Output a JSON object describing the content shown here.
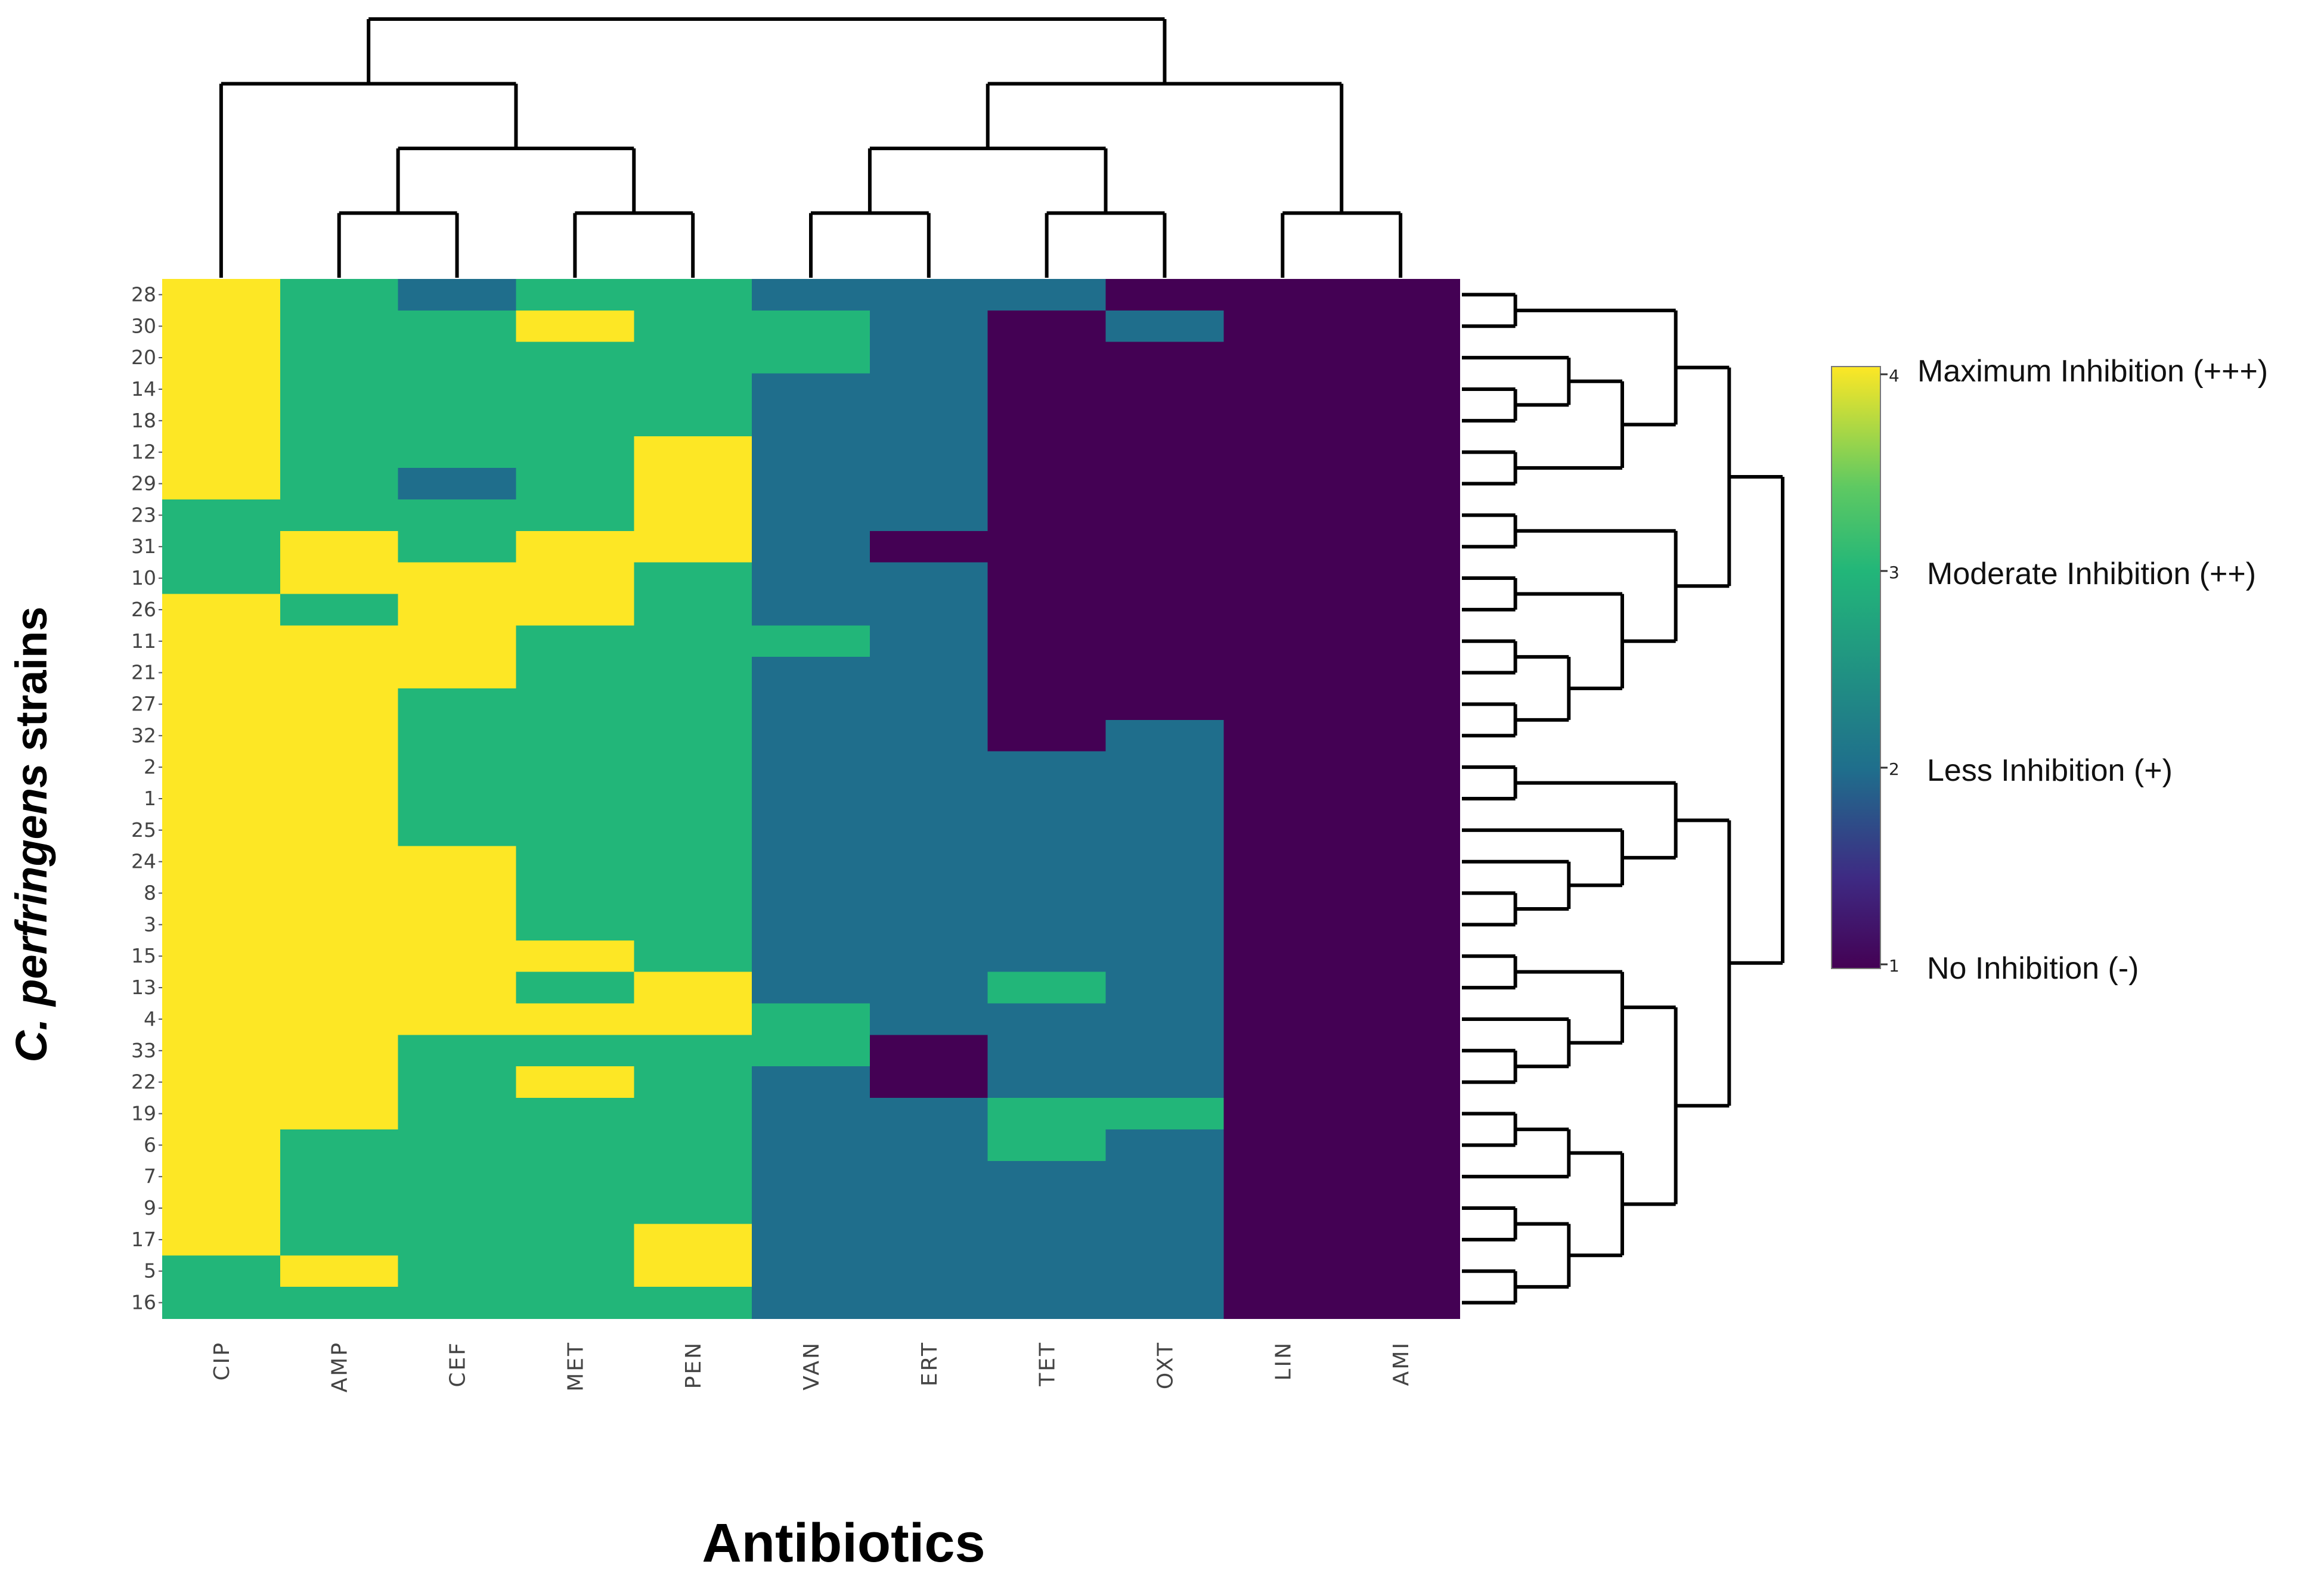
{
  "chart_data": {
    "type": "heatmap",
    "xlabel": "Antibiotics",
    "ylabel_prefix": "C. perfringens",
    "ylabel_suffix": " strains",
    "columns": [
      "CIP",
      "AMP",
      "CEF",
      "MET",
      "PEN",
      "VAN",
      "ERT",
      "TET",
      "OXT",
      "LIN",
      "AMI"
    ],
    "rows": [
      "28",
      "30",
      "20",
      "14",
      "18",
      "12",
      "29",
      "23",
      "31",
      "10",
      "26",
      "11",
      "21",
      "27",
      "32",
      "2",
      "1",
      "25",
      "24",
      "8",
      "3",
      "15",
      "13",
      "4",
      "33",
      "22",
      "19",
      "6",
      "7",
      "9",
      "17",
      "5",
      "16"
    ],
    "values": [
      [
        4,
        3,
        2,
        3,
        3,
        2,
        2,
        2,
        1,
        1,
        1
      ],
      [
        4,
        3,
        3,
        4,
        3,
        3,
        2,
        1,
        2,
        1,
        1
      ],
      [
        4,
        3,
        3,
        3,
        3,
        3,
        2,
        1,
        1,
        1,
        1
      ],
      [
        4,
        3,
        3,
        3,
        3,
        2,
        2,
        1,
        1,
        1,
        1
      ],
      [
        4,
        3,
        3,
        3,
        3,
        2,
        2,
        1,
        1,
        1,
        1
      ],
      [
        4,
        3,
        3,
        3,
        4,
        2,
        2,
        1,
        1,
        1,
        1
      ],
      [
        4,
        3,
        2,
        3,
        4,
        2,
        2,
        1,
        1,
        1,
        1
      ],
      [
        3,
        3,
        3,
        3,
        4,
        2,
        2,
        1,
        1,
        1,
        1
      ],
      [
        3,
        4,
        3,
        4,
        4,
        2,
        1,
        1,
        1,
        1,
        1
      ],
      [
        3,
        4,
        4,
        4,
        3,
        2,
        2,
        1,
        1,
        1,
        1
      ],
      [
        4,
        3,
        4,
        4,
        3,
        2,
        2,
        1,
        1,
        1,
        1
      ],
      [
        4,
        4,
        4,
        3,
        3,
        3,
        2,
        1,
        1,
        1,
        1
      ],
      [
        4,
        4,
        4,
        3,
        3,
        2,
        2,
        1,
        1,
        1,
        1
      ],
      [
        4,
        4,
        3,
        3,
        3,
        2,
        2,
        1,
        1,
        1,
        1
      ],
      [
        4,
        4,
        3,
        3,
        3,
        2,
        2,
        1,
        2,
        1,
        1
      ],
      [
        4,
        4,
        3,
        3,
        3,
        2,
        2,
        2,
        2,
        1,
        1
      ],
      [
        4,
        4,
        3,
        3,
        3,
        2,
        2,
        2,
        2,
        1,
        1
      ],
      [
        4,
        4,
        3,
        3,
        3,
        2,
        2,
        2,
        2,
        1,
        1
      ],
      [
        4,
        4,
        4,
        3,
        3,
        2,
        2,
        2,
        2,
        1,
        1
      ],
      [
        4,
        4,
        4,
        3,
        3,
        2,
        2,
        2,
        2,
        1,
        1
      ],
      [
        4,
        4,
        4,
        3,
        3,
        2,
        2,
        2,
        2,
        1,
        1
      ],
      [
        4,
        4,
        4,
        4,
        3,
        2,
        2,
        2,
        2,
        1,
        1
      ],
      [
        4,
        4,
        4,
        3,
        4,
        2,
        2,
        3,
        2,
        1,
        1
      ],
      [
        4,
        4,
        4,
        4,
        4,
        3,
        2,
        2,
        2,
        1,
        1
      ],
      [
        4,
        4,
        3,
        3,
        3,
        3,
        1,
        2,
        2,
        1,
        1
      ],
      [
        4,
        4,
        3,
        4,
        3,
        2,
        1,
        2,
        2,
        1,
        1
      ],
      [
        4,
        4,
        3,
        3,
        3,
        2,
        2,
        3,
        3,
        1,
        1
      ],
      [
        4,
        3,
        3,
        3,
        3,
        2,
        2,
        3,
        2,
        1,
        1
      ],
      [
        4,
        3,
        3,
        3,
        3,
        2,
        2,
        2,
        2,
        1,
        1
      ],
      [
        4,
        3,
        3,
        3,
        3,
        2,
        2,
        2,
        2,
        1,
        1
      ],
      [
        4,
        3,
        3,
        3,
        4,
        2,
        2,
        2,
        2,
        1,
        1
      ],
      [
        3,
        4,
        3,
        3,
        4,
        2,
        2,
        2,
        2,
        1,
        1
      ],
      [
        3,
        3,
        3,
        3,
        3,
        2,
        2,
        2,
        2,
        1,
        1
      ]
    ],
    "color_scale": {
      "colors": {
        "1": "#440154",
        "2": "#1f6e8c",
        "3": "#22b679",
        "4": "#fde725"
      },
      "range": [
        1,
        4
      ],
      "ticks": [
        "1",
        "2",
        "3",
        "4"
      ],
      "legend_labels": [
        "No Inhibition  (-)",
        "Less Inhibition (+)",
        "Moderate Inhibition (++)",
        "Maximum Inhibition (+++)"
      ]
    },
    "column_dendrogram": "((CIP,((AMP,CEF),(MET,PEN))),(((VAN,ERT),(TET,OXT)),(LIN,AMI)))",
    "row_dendrogram": "((((28,30),((20,(14,18)),(12,29))),((23,31),((10,26),((11,21),(27,32))))),(((2,1),(25,(24,(8,3)))),(((15,13),(4,(33,22))),(((19,6),7),((9,17),(5,16))))))"
  }
}
